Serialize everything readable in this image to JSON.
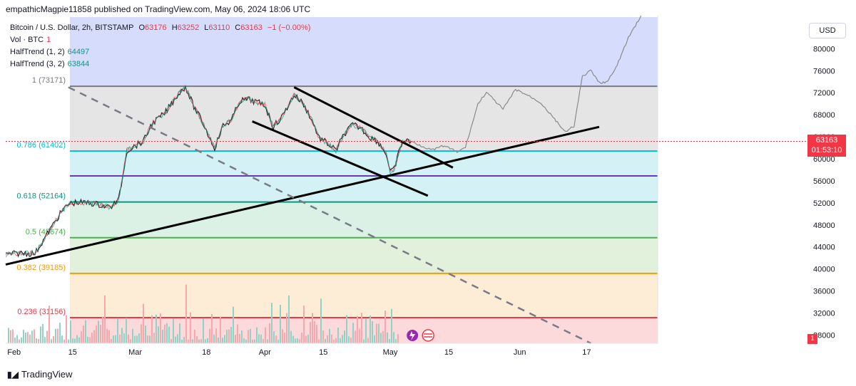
{
  "header": {
    "publish_line": "empathicMagpie11858 published on TradingView.com, May 06, 2024 18:06 UTC"
  },
  "legend": {
    "symbol": "Bitcoin / U.S. Dollar, 2h, BITSTAMP",
    "open_label": "O",
    "open": "63176",
    "high_label": "H",
    "high": "63252",
    "low_label": "L",
    "low": "63110",
    "close_label": "C",
    "close": "63163",
    "change": "−1 (−0.00%)",
    "vol_label": "Vol · BTC",
    "vol_value": "1",
    "ht1_label": "HalfTrend (1, 2)",
    "ht1_value": "64497",
    "ht2_label": "HalfTrend (3, 2)",
    "ht2_value": "63844"
  },
  "currency": "USD",
  "price_tag": {
    "price": "63163",
    "countdown": "01:53:10"
  },
  "flag_label": "1",
  "footer": {
    "brand": "TradingView"
  },
  "colors": {
    "up": "#089981",
    "down": "#f23645",
    "accent": "#2962ff"
  },
  "chart_data": {
    "type": "candlestick",
    "title": "Bitcoin / U.S. Dollar, 2h, BITSTAMP",
    "ylim": [
      26500,
      86000
    ],
    "y_ticks": [
      "80000",
      "76000",
      "72000",
      "68000",
      "64000",
      "60000",
      "56000",
      "52000",
      "48000",
      "44000",
      "40000",
      "36000",
      "32000",
      "28000"
    ],
    "x_ticks": [
      "Feb",
      "15",
      "Mar",
      "18",
      "Apr",
      "15",
      "May",
      "15",
      "Jun",
      "17"
    ],
    "fib_levels": [
      {
        "label": "1 (73171)",
        "value": 73171,
        "color": "#787b86",
        "zone": "#cfd6fb"
      },
      {
        "label": "0.786 (61402)",
        "value": 61402,
        "color": "#00bcd4",
        "zone": "#e0e0e0"
      },
      {
        "label": "",
        "value": 56900,
        "color": "#673ab7",
        "zone": "#cdeff3"
      },
      {
        "label": "0.618 (52164)",
        "value": 52164,
        "color": "#089981",
        "zone": "#cdeff3"
      },
      {
        "label": "0.5 (45674)",
        "value": 45674,
        "color": "#4caf50",
        "zone": "#d5eee0"
      },
      {
        "label": "0.382 (39185)",
        "value": 39185,
        "color": "#ff9800",
        "zone": "#dcefd6"
      },
      {
        "label": "0.236 (31156)",
        "value": 31156,
        "color": "#f23645",
        "zone": "#fde9cf"
      }
    ],
    "bottom_zone_color": "#fbd4d6",
    "price_path": [
      {
        "date": "2024-01-30",
        "v": 42600
      },
      {
        "date": "2024-02-03",
        "v": 42900
      },
      {
        "date": "2024-02-06",
        "v": 42800
      },
      {
        "date": "2024-02-08",
        "v": 45200
      },
      {
        "date": "2024-02-10",
        "v": 47600
      },
      {
        "date": "2024-02-12",
        "v": 50000
      },
      {
        "date": "2024-02-14",
        "v": 51800
      },
      {
        "date": "2024-02-16",
        "v": 52100
      },
      {
        "date": "2024-02-20",
        "v": 51900
      },
      {
        "date": "2024-02-24",
        "v": 51200
      },
      {
        "date": "2024-02-26",
        "v": 52500
      },
      {
        "date": "2024-02-27",
        "v": 56900
      },
      {
        "date": "2024-02-28",
        "v": 61500
      },
      {
        "date": "2024-03-01",
        "v": 62400
      },
      {
        "date": "2024-03-03",
        "v": 63200
      },
      {
        "date": "2024-03-05",
        "v": 66400
      },
      {
        "date": "2024-03-08",
        "v": 68200
      },
      {
        "date": "2024-03-11",
        "v": 71500
      },
      {
        "date": "2024-03-13",
        "v": 73171
      },
      {
        "date": "2024-03-15",
        "v": 69500
      },
      {
        "date": "2024-03-17",
        "v": 66800
      },
      {
        "date": "2024-03-19",
        "v": 63500
      },
      {
        "date": "2024-03-20",
        "v": 62000
      },
      {
        "date": "2024-03-22",
        "v": 66000
      },
      {
        "date": "2024-03-24",
        "v": 67000
      },
      {
        "date": "2024-03-26",
        "v": 70500
      },
      {
        "date": "2024-03-28",
        "v": 70800
      },
      {
        "date": "2024-04-01",
        "v": 69800
      },
      {
        "date": "2024-04-03",
        "v": 65800
      },
      {
        "date": "2024-04-05",
        "v": 67500
      },
      {
        "date": "2024-04-08",
        "v": 71600
      },
      {
        "date": "2024-04-10",
        "v": 70200
      },
      {
        "date": "2024-04-12",
        "v": 67500
      },
      {
        "date": "2024-04-14",
        "v": 63800
      },
      {
        "date": "2024-04-16",
        "v": 62800
      },
      {
        "date": "2024-04-18",
        "v": 61500
      },
      {
        "date": "2024-04-20",
        "v": 64500
      },
      {
        "date": "2024-04-22",
        "v": 66200
      },
      {
        "date": "2024-04-24",
        "v": 65600
      },
      {
        "date": "2024-04-26",
        "v": 64000
      },
      {
        "date": "2024-04-28",
        "v": 63200
      },
      {
        "date": "2024-04-30",
        "v": 61000
      },
      {
        "date": "2024-05-01",
        "v": 57500
      },
      {
        "date": "2024-05-02",
        "v": 58200
      },
      {
        "date": "2024-05-03",
        "v": 61000
      },
      {
        "date": "2024-05-04",
        "v": 63200
      },
      {
        "date": "2024-05-06",
        "v": 63163
      }
    ],
    "projection_path": [
      {
        "date": "2024-05-06",
        "v": 63163
      },
      {
        "date": "2024-05-09",
        "v": 62200
      },
      {
        "date": "2024-05-11",
        "v": 61600
      },
      {
        "date": "2024-05-14",
        "v": 62400
      },
      {
        "date": "2024-05-17",
        "v": 61200
      },
      {
        "date": "2024-05-19",
        "v": 62100
      },
      {
        "date": "2024-05-22",
        "v": 70000
      },
      {
        "date": "2024-05-24",
        "v": 72100
      },
      {
        "date": "2024-05-28",
        "v": 69000
      },
      {
        "date": "2024-05-31",
        "v": 72600
      },
      {
        "date": "2024-06-03",
        "v": 71500
      },
      {
        "date": "2024-06-06",
        "v": 70200
      },
      {
        "date": "2024-06-09",
        "v": 67500
      },
      {
        "date": "2024-06-12",
        "v": 64800
      },
      {
        "date": "2024-06-14",
        "v": 66000
      },
      {
        "date": "2024-06-16",
        "v": 75000
      },
      {
        "date": "2024-06-18",
        "v": 76000
      },
      {
        "date": "2024-06-20",
        "v": 73800
      },
      {
        "date": "2024-06-22",
        "v": 74000
      },
      {
        "date": "2024-06-24",
        "v": 76500
      },
      {
        "date": "2024-06-27",
        "v": 82000
      },
      {
        "date": "2024-06-30",
        "v": 86000
      }
    ],
    "trendlines": [
      {
        "name": "rising-support",
        "from": {
          "date": "2024-01-30",
          "v": 40800
        },
        "to": {
          "date": "2024-06-20",
          "v": 65800
        },
        "style": "solid",
        "color": "#000000"
      },
      {
        "name": "channel-upper",
        "from": {
          "date": "2024-04-08",
          "v": 73000
        },
        "to": {
          "date": "2024-05-16",
          "v": 58400
        },
        "style": "solid",
        "color": "#000000"
      },
      {
        "name": "channel-lower",
        "from": {
          "date": "2024-03-29",
          "v": 66800
        },
        "to": {
          "date": "2024-05-10",
          "v": 53300
        },
        "style": "solid",
        "color": "#000000"
      },
      {
        "name": "dashed-downtrend",
        "from": {
          "date": "2024-02-14",
          "v": 73000
        },
        "to": {
          "date": "2024-06-18",
          "v": 26500
        },
        "style": "dashed",
        "color": "#787b86"
      }
    ],
    "volume": "spikes along bottom"
  }
}
